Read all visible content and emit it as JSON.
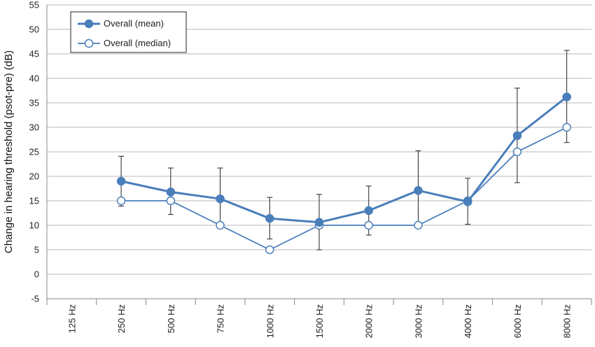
{
  "chart_data": {
    "type": "line",
    "title": "",
    "xlabel": "",
    "ylabel": "Change in hearing threshold (psot-pre) (dB)",
    "categories": [
      "125 Hz",
      "250 Hz",
      "500 Hz",
      "750 Hz",
      "1000 Hz",
      "1500 Hz",
      "2000 Hz",
      "3000 Hz",
      "4000 Hz",
      "6000 Hz",
      "8000 Hz"
    ],
    "ylim": [
      -5,
      55
    ],
    "yticks": [
      "55",
      "50",
      "45",
      "40",
      "35",
      "30",
      "25",
      "20",
      "15",
      "10",
      "5",
      "0",
      "-5"
    ],
    "grid": true,
    "legend_position": "top-left",
    "series": [
      {
        "name": "Overall (mean)",
        "marker": "filled-circle",
        "color": "#4a7ebb",
        "values": [
          null,
          19,
          16.8,
          15.4,
          11.4,
          10.6,
          13,
          17.1,
          14.8,
          28.3,
          36.2
        ],
        "error_low": [
          null,
          13.9,
          12.2,
          9.8,
          7.2,
          5,
          8,
          10,
          10.2,
          18.7,
          26.9
        ],
        "error_high": [
          null,
          24.1,
          21.7,
          21.7,
          15.7,
          16.3,
          18,
          25.2,
          19.6,
          38,
          45.7
        ]
      },
      {
        "name": "Overall (median)",
        "marker": "open-circle",
        "color": "#4a7ebb",
        "values": [
          null,
          15,
          15,
          10,
          5,
          10,
          10,
          10,
          15,
          25,
          30
        ]
      }
    ]
  }
}
